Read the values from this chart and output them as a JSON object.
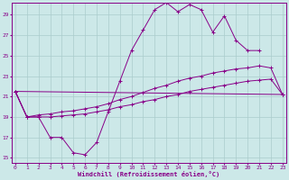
{
  "xlabel": "Windchill (Refroidissement éolien,°C)",
  "bg_color": "#cce8e8",
  "grid_color": "#aacccc",
  "line_color": "#880088",
  "yticks": [
    15,
    17,
    19,
    21,
    23,
    25,
    27,
    29
  ],
  "xticks": [
    0,
    1,
    2,
    3,
    4,
    5,
    6,
    7,
    8,
    9,
    10,
    11,
    12,
    13,
    14,
    15,
    16,
    17,
    18,
    19,
    20,
    21,
    22,
    23
  ],
  "ylim": [
    14.5,
    30.2
  ],
  "xlim": [
    -0.3,
    23.3
  ],
  "series": [
    {
      "x": [
        0,
        1,
        2,
        3,
        4,
        5,
        6,
        7,
        8,
        9,
        10,
        11,
        12,
        13,
        14,
        15,
        16,
        17,
        18,
        19,
        20,
        21
      ],
      "y": [
        21.5,
        19,
        19,
        17,
        17,
        15.5,
        15.3,
        16.5,
        19.5,
        22.5,
        25.5,
        27.5,
        29.5,
        30.2,
        29.3,
        30.0,
        29.5,
        27.3,
        28.9,
        26.5,
        25.5,
        25.5
      ]
    },
    {
      "x": [
        0,
        23
      ],
      "y": [
        21.5,
        21.2
      ]
    },
    {
      "x": [
        0,
        1,
        2,
        3,
        4,
        5,
        6,
        7,
        8,
        9,
        10,
        11,
        12,
        13,
        14,
        15,
        16,
        17,
        18,
        19,
        20,
        21,
        22,
        23
      ],
      "y": [
        21.5,
        19,
        19.2,
        19.3,
        19.5,
        19.6,
        19.8,
        20.0,
        20.3,
        20.7,
        21.0,
        21.4,
        21.8,
        22.1,
        22.5,
        22.8,
        23.0,
        23.3,
        23.5,
        23.7,
        23.8,
        24.0,
        23.8,
        21.2
      ]
    },
    {
      "x": [
        0,
        1,
        2,
        3,
        4,
        5,
        6,
        7,
        8,
        9,
        10,
        11,
        12,
        13,
        14,
        15,
        16,
        17,
        18,
        19,
        20,
        21,
        22,
        23
      ],
      "y": [
        21.5,
        19,
        19,
        19,
        19.1,
        19.2,
        19.3,
        19.5,
        19.7,
        20.0,
        20.2,
        20.5,
        20.7,
        21.0,
        21.2,
        21.5,
        21.7,
        21.9,
        22.1,
        22.3,
        22.5,
        22.6,
        22.7,
        21.2
      ]
    }
  ]
}
